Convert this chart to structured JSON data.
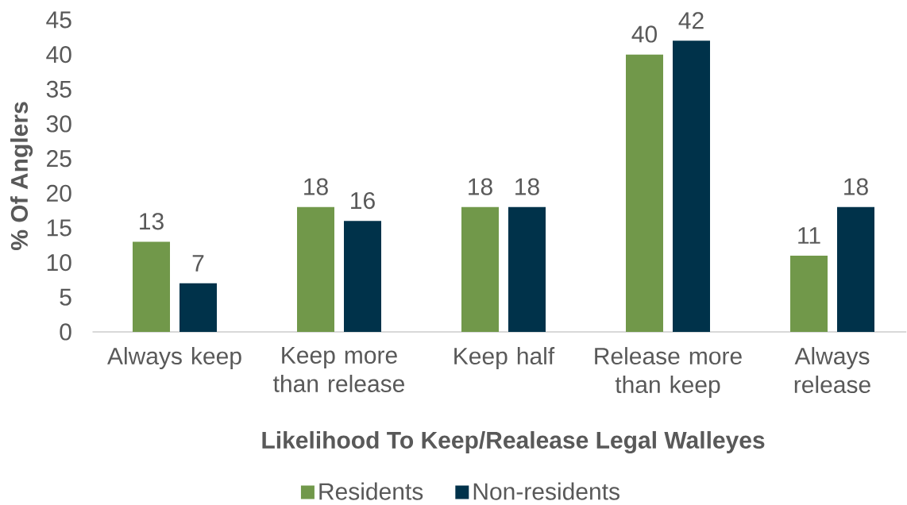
{
  "chart_data": {
    "type": "bar",
    "xlabel": "Likelihood To Keep/Realease Legal Walleyes",
    "ylabel": "% Of Anglers",
    "categories": [
      "Always keep",
      "Keep more than release",
      "Keep half",
      "Release more than keep",
      "Always release"
    ],
    "series": [
      {
        "name": "Residents",
        "color": "#71984a",
        "values": [
          13,
          18,
          18,
          40,
          11
        ]
      },
      {
        "name": "Non-residents",
        "color": "#00324a",
        "values": [
          7,
          16,
          18,
          42,
          18
        ]
      }
    ],
    "ylim": [
      0,
      45
    ],
    "yticks": [
      0,
      5,
      10,
      15,
      20,
      25,
      30,
      35,
      40,
      45
    ],
    "data_labels": true,
    "legend": "bottom"
  }
}
